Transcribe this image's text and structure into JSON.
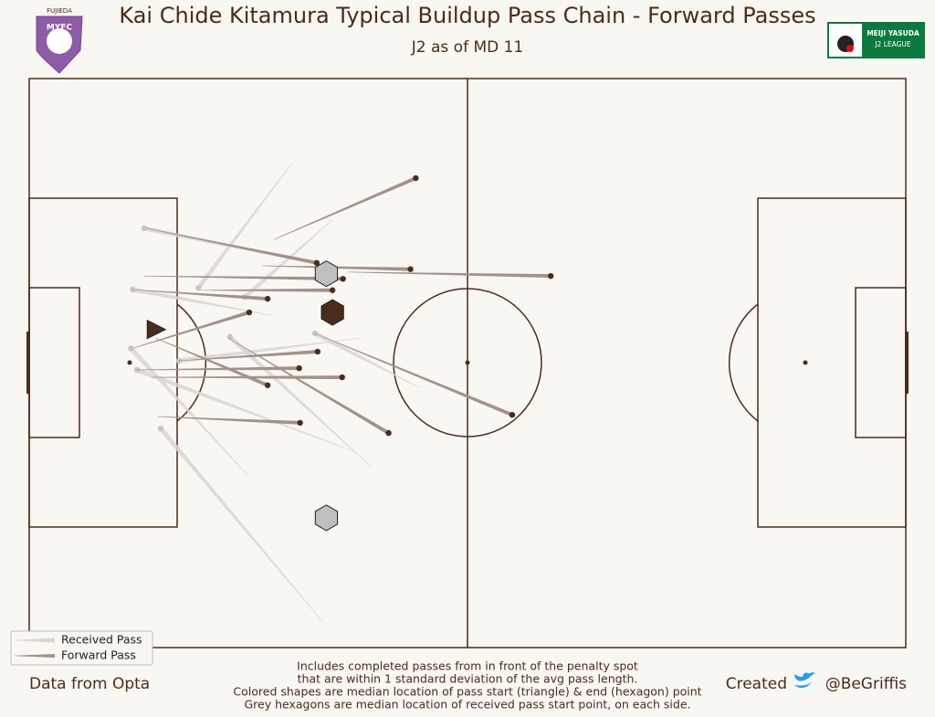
{
  "chart_data": {
    "type": "pass-map",
    "title": "Kai Chide Kitamura Typical Buildup Pass Chain - Forward Passes",
    "subtitle": "J2 as of MD 11",
    "xlim": [
      0,
      100
    ],
    "ylim": [
      0,
      100
    ],
    "series": [
      {
        "name": "Received Pass",
        "color": "#d9d6d2",
        "end_color": "#c9c6c2",
        "passes": [
          {
            "start": [
              30.0,
              14.8
            ],
            "end": [
              19.3,
              36.8
            ]
          },
          {
            "start": [
              34.7,
              24.7
            ],
            "end": [
              24.6,
              38.4
            ]
          },
          {
            "start": [
              27.7,
              41.6
            ],
            "end": [
              11.8,
              37.1
            ]
          },
          {
            "start": [
              37.8,
              45.6
            ],
            "end": [
              17.1,
              49.6
            ]
          },
          {
            "start": [
              37.3,
              65.7
            ],
            "end": [
              12.3,
              51.2
            ]
          },
          {
            "start": [
              38.9,
              68.1
            ],
            "end": [
              22.9,
              45.4
            ]
          },
          {
            "start": [
              25.1,
              70.0
            ],
            "end": [
              11.6,
              47.4
            ]
          },
          {
            "start": [
              33.6,
              95.7
            ],
            "end": [
              15.0,
              61.5
            ]
          },
          {
            "start": [
              44.6,
              54.4
            ],
            "end": [
              32.6,
              44.8
            ]
          },
          {
            "start": [
              33.1,
              32.7
            ],
            "end": [
              13.1,
              26.3
            ]
          }
        ]
      },
      {
        "name": "Forward Pass",
        "color": "#a39288",
        "end_color": "#4b2c1a",
        "passes": [
          {
            "start": [
              27.9,
              28.3
            ],
            "end": [
              44.1,
              17.5
            ]
          },
          {
            "start": [
              13.3,
              26.3
            ],
            "end": [
              32.8,
              32.4
            ]
          },
          {
            "start": [
              26.6,
              32.9
            ],
            "end": [
              43.5,
              33.5
            ]
          },
          {
            "start": [
              36.3,
              34.0
            ],
            "end": [
              59.5,
              34.7
            ]
          },
          {
            "start": [
              13.1,
              34.7
            ],
            "end": [
              35.8,
              35.2
            ]
          },
          {
            "start": [
              11.8,
              37.1
            ],
            "end": [
              27.2,
              38.7
            ]
          },
          {
            "start": [
              19.6,
              37.2
            ],
            "end": [
              34.6,
              37.2
            ]
          },
          {
            "start": [
              11.8,
              47.4
            ],
            "end": [
              25.1,
              41.1
            ]
          },
          {
            "start": [
              17.0,
              49.6
            ],
            "end": [
              32.9,
              48.0
            ]
          },
          {
            "start": [
              12.3,
              51.2
            ],
            "end": [
              30.8,
              50.9
            ]
          },
          {
            "start": [
              13.9,
              52.5
            ],
            "end": [
              35.7,
              52.5
            ]
          },
          {
            "start": [
              14.4,
              45.6
            ],
            "end": [
              27.2,
              53.9
            ]
          },
          {
            "start": [
              22.7,
              45.6
            ],
            "end": [
              41.0,
              62.3
            ]
          },
          {
            "start": [
              32.6,
              44.8
            ],
            "end": [
              55.1,
              59.1
            ]
          },
          {
            "start": [
              14.6,
              59.4
            ],
            "end": [
              30.9,
              60.5
            ]
          }
        ]
      }
    ],
    "markers": [
      {
        "shape": "triangle",
        "color": "#4b2c1a",
        "x": 14.4,
        "y": 44.1
      },
      {
        "shape": "hexagon",
        "color": "#4b2c1a",
        "x": 34.6,
        "y": 41.1
      },
      {
        "shape": "hexagon",
        "color": "#c0bfbf",
        "x": 33.9,
        "y": 34.3
      },
      {
        "shape": "hexagon",
        "color": "#c0bfbf",
        "x": 33.9,
        "y": 77.2
      }
    ]
  },
  "footer": {
    "source": "Data from Opta",
    "notes": [
      "Includes completed passes from in front of the penalty spot",
      "that are within 1 standard deviation of the avg pass length.",
      "Colored shapes are median location of pass start (triangle) &  end (hexagon) point",
      "Grey hexagons are median location of received pass start point, on each side."
    ],
    "created": "Created",
    "handle": "@BeGriffis"
  },
  "logos": {
    "club_top": "FUJIEDA",
    "club": "MYFC",
    "league_1": "MEIJI YASUDA",
    "league_2": "J2 LEAGUE"
  }
}
